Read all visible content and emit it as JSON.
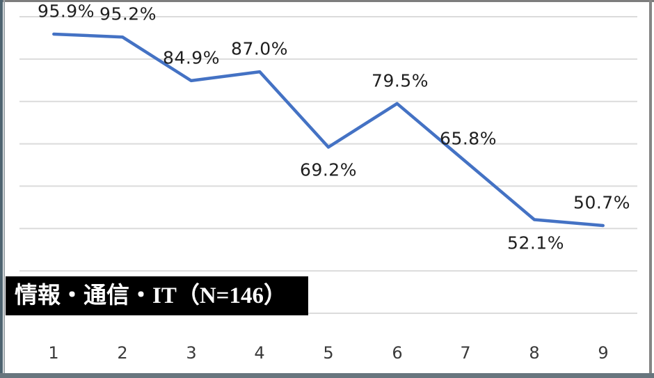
{
  "chart_data": {
    "type": "line",
    "title": "",
    "categories": [
      "1",
      "2",
      "3",
      "4",
      "5",
      "6",
      "7",
      "8",
      "9"
    ],
    "values": [
      95.9,
      95.2,
      84.9,
      87.0,
      69.2,
      79.5,
      65.8,
      52.1,
      50.7
    ],
    "data_labels": [
      "95.9%",
      "95.2%",
      "84.9%",
      "87.0%",
      "69.2%",
      "79.5%",
      "65.8%",
      "52.1%",
      "50.7%"
    ],
    "data_label_side": [
      "above",
      "above",
      "above",
      "above",
      "below",
      "above",
      "above",
      "below",
      "above"
    ],
    "series_name": "情報・通信・IT（N=146）",
    "xlabel": "",
    "ylabel": "",
    "ylim": [
      30,
      100
    ],
    "major_unit": 10,
    "grid": true,
    "legend_position": "none",
    "line_color": "#4472C4",
    "gridline_color": "#DBDBDB",
    "data_label_color": "#1F1F1F",
    "axis_label_color": "#3A3A3A"
  },
  "legend_box": {
    "text": "情報・通信・IT（N=146）",
    "bg_color": "#000000",
    "text_color": "#FFFFFF"
  }
}
